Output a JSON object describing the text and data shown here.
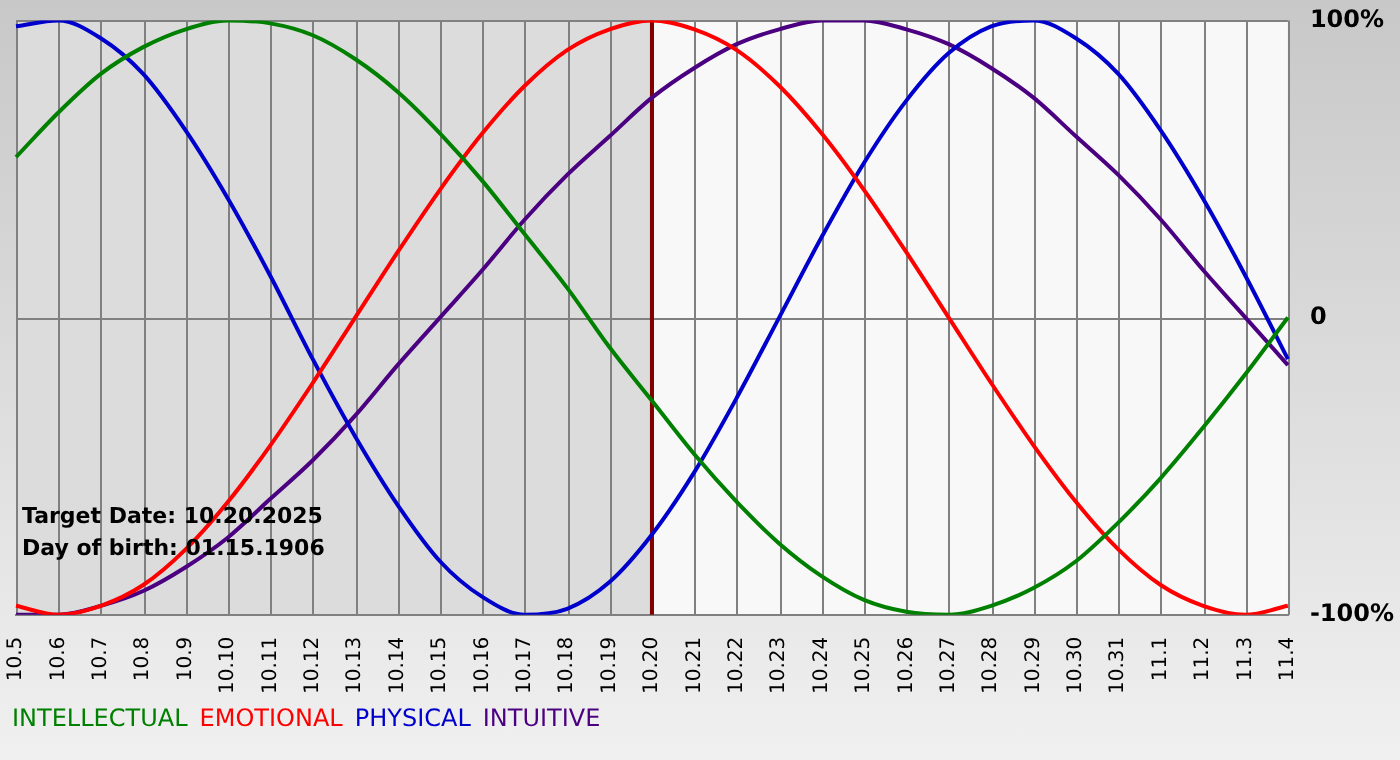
{
  "chart_data": {
    "type": "line",
    "categories": [
      "10.5",
      "10.6",
      "10.7",
      "10.8",
      "10.9",
      "10.10",
      "10.11",
      "10.12",
      "10.13",
      "10.14",
      "10.15",
      "10.16",
      "10.17",
      "10.18",
      "10.19",
      "10.20",
      "10.21",
      "10.22",
      "10.23",
      "10.24",
      "10.25",
      "10.26",
      "10.27",
      "10.28",
      "10.29",
      "10.30",
      "10.31",
      "11.1",
      "11.2",
      "11.3",
      "11.4"
    ],
    "series": [
      {
        "name": "INTELLECTUAL",
        "color": "#008000",
        "values": [
          54,
          69,
          82,
          91,
          97,
          100,
          99,
          95,
          87,
          76,
          62,
          46,
          28,
          10,
          -10,
          -28,
          -46,
          -62,
          -76,
          -87,
          -95,
          -99,
          -100,
          -97,
          -91,
          -82,
          -69,
          -54,
          -37,
          -19,
          0
        ]
      },
      {
        "name": "EMOTIONAL",
        "color": "#ff0000",
        "values": [
          -97,
          -100,
          -97,
          -90,
          -78,
          -62,
          -43,
          -22,
          0,
          22,
          43,
          62,
          78,
          90,
          97,
          100,
          97,
          90,
          78,
          62,
          43,
          22,
          0,
          -22,
          -43,
          -62,
          -78,
          -90,
          -97,
          -100,
          -97
        ]
      },
      {
        "name": "PHYSICAL",
        "color": "#0000cc",
        "values": [
          98,
          100,
          94,
          82,
          63,
          40,
          14,
          -14,
          -40,
          -63,
          -82,
          -94,
          -100,
          -98,
          -89,
          -73,
          -52,
          -27,
          0,
          27,
          52,
          73,
          89,
          98,
          100,
          94,
          82,
          63,
          40,
          14,
          -14
        ]
      },
      {
        "name": "INTUITIVE",
        "color": "#4b0082",
        "values": [
          -100,
          -100,
          -97,
          -92,
          -84,
          -74,
          -61,
          -48,
          -33,
          -16,
          0,
          16,
          33,
          48,
          61,
          74,
          84,
          92,
          97,
          100,
          100,
          97,
          92,
          84,
          74,
          61,
          48,
          33,
          16,
          0,
          -16
        ]
      }
    ],
    "ylim": [
      -100,
      100
    ],
    "yticks": [
      {
        "value": -100,
        "label": "-100%"
      },
      0,
      {
        "value": 100,
        "label": "100%"
      }
    ],
    "ref_lines": [
      {
        "axis": "x",
        "value": "10.20",
        "color": "#800000"
      }
    ],
    "bands": [
      {
        "axis": "x",
        "from": "10.5",
        "to": "10.20",
        "color": "#dcdcdc"
      }
    ],
    "annotations": [
      "Target Date: 10.20.2025",
      "Day of birth: 01.15.1906"
    ],
    "grid": true,
    "legend": "bottom",
    "marker": "none",
    "line_style": "solid"
  }
}
